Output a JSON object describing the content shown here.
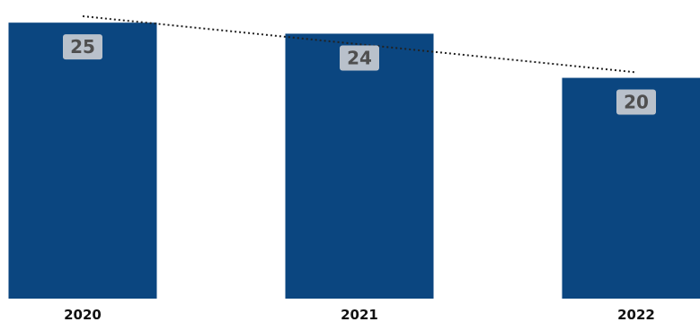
{
  "chart_data": {
    "type": "bar",
    "title": "",
    "xlabel": "",
    "ylabel": "",
    "categories": [
      "2020",
      "2021",
      "2022"
    ],
    "values": [
      25,
      24,
      20
    ],
    "ylim": [
      0,
      26.4
    ],
    "grid": false,
    "legend": "none",
    "trendline": {
      "type": "linear",
      "style": "dotted",
      "color": "#222222"
    },
    "colors": {
      "bar": "#0b4680",
      "data_label_bg": "#b9c1cb",
      "data_label_text": "#4f4f4f",
      "tick_label": "#111111"
    }
  }
}
